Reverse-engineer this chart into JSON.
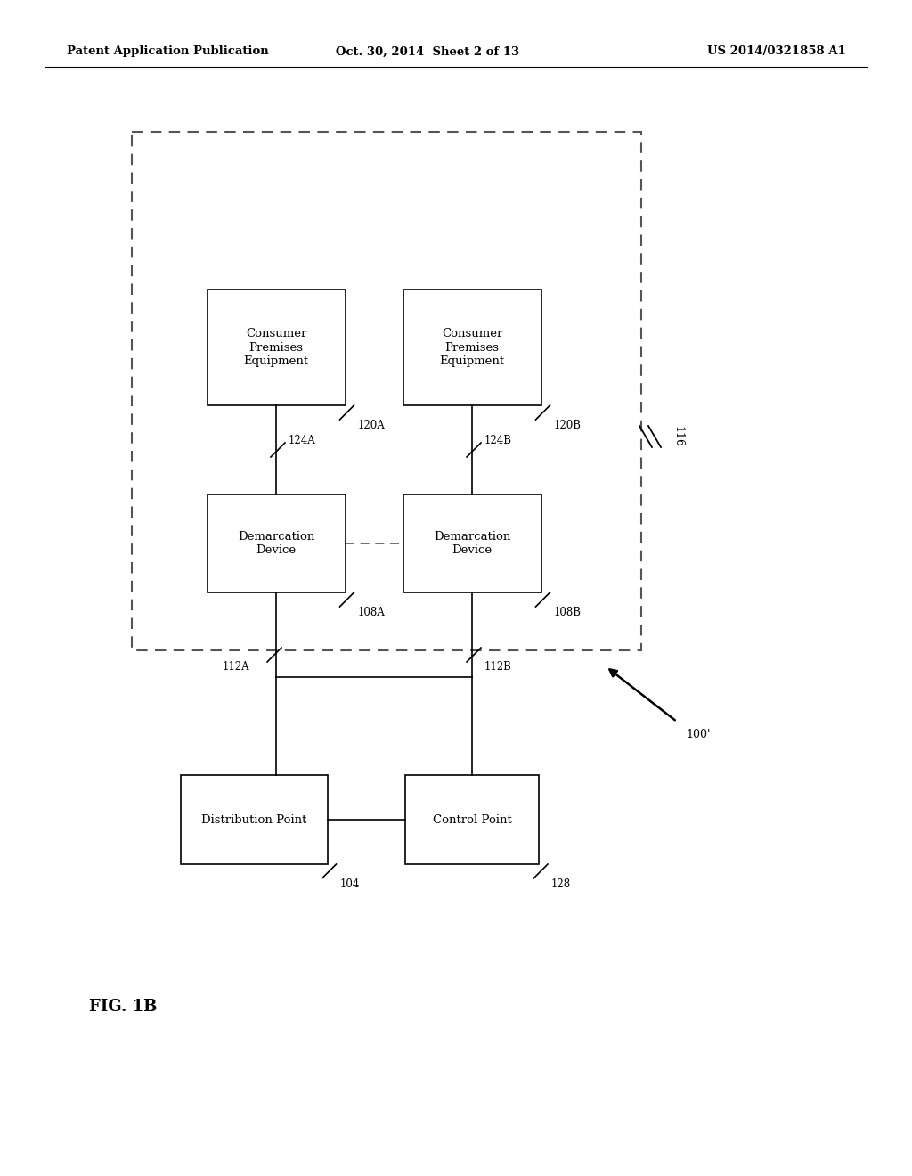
{
  "bg_color": "#ffffff",
  "header_left": "Patent Application Publication",
  "header_mid": "Oct. 30, 2014  Sheet 2 of 13",
  "header_right": "US 2014/0321858 A1",
  "fig_label": "FIG. 1B",
  "cpe_a_label": "Consumer\nPremises\nEquipment",
  "cpe_b_label": "Consumer\nPremises\nEquipment",
  "dem_a_label": "Demarcation\nDevice",
  "dem_b_label": "Demarcation\nDevice",
  "dist_label": "Distribution Point",
  "ctrl_label": "Control Point",
  "ref_120a": "120A",
  "ref_120b": "120B",
  "ref_124a": "124A",
  "ref_124b": "124B",
  "ref_108a": "108A",
  "ref_108b": "108B",
  "ref_112a": "112A",
  "ref_112b": "112B",
  "ref_104": "104",
  "ref_128": "128",
  "ref_116": "116",
  "ref_100": "100'"
}
